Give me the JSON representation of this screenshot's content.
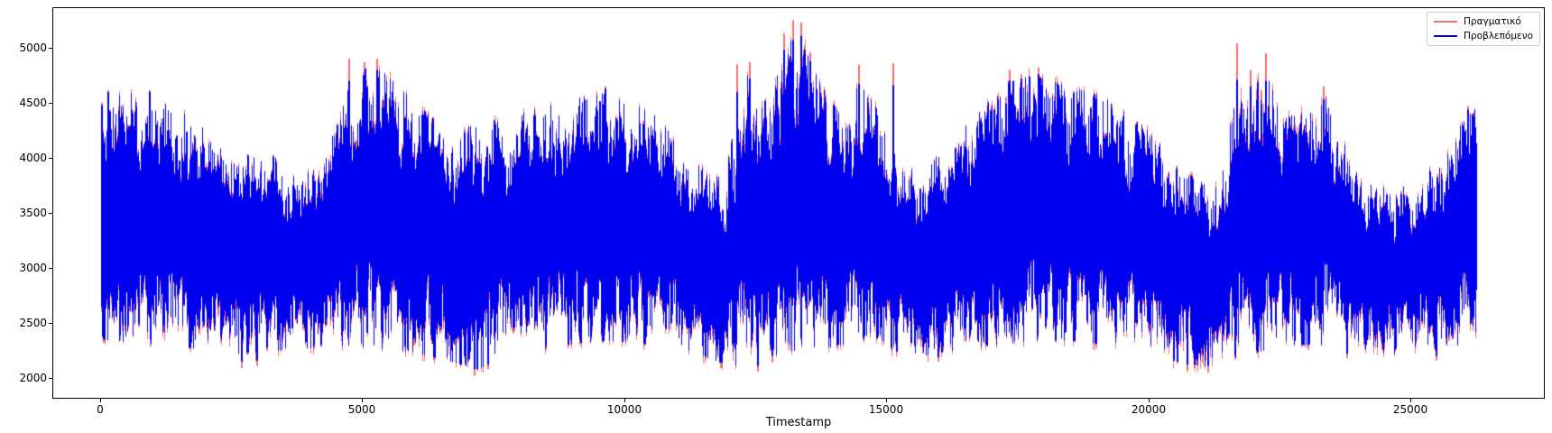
{
  "chart_data": {
    "type": "line",
    "title": "",
    "xlabel": "Timestamp",
    "ylabel": "",
    "grid": false,
    "legend_position": "upper right",
    "xlim": [
      -913,
      27567
    ],
    "ylim": [
      1812,
      5369
    ],
    "x_tick_values": [
      0,
      5000,
      10000,
      15000,
      20000,
      25000
    ],
    "x_tick_labels": [
      "0",
      "5000",
      "10000",
      "15000",
      "20000",
      "25000"
    ],
    "y_tick_values": [
      2000,
      2500,
      3000,
      3500,
      4000,
      4500,
      5000
    ],
    "y_tick_labels": [
      "2000",
      "2500",
      "3000",
      "3500",
      "4000",
      "4500",
      "5000"
    ],
    "x_data_range": [
      0,
      26292
    ],
    "series": [
      {
        "name": "actual",
        "label": "Πραγματικό",
        "color": "#f96d6f"
      },
      {
        "name": "predicted",
        "label": "Προβλεπόμενο",
        "color": "#0000f0"
      }
    ],
    "envelope_columns": [
      "timestamp",
      "upper_blue",
      "lower_blue",
      "red_extra_above",
      "red_extra_below"
    ],
    "envelope": [
      [
        0,
        4550,
        2350,
        40,
        60
      ],
      [
        800,
        4600,
        2320,
        40,
        60
      ],
      [
        1600,
        4400,
        2280,
        40,
        70
      ],
      [
        2600,
        4150,
        2220,
        40,
        80
      ],
      [
        3600,
        3950,
        2260,
        40,
        60
      ],
      [
        4300,
        4100,
        2280,
        50,
        60
      ],
      [
        4800,
        4800,
        2300,
        80,
        60
      ],
      [
        5300,
        4820,
        2260,
        80,
        60
      ],
      [
        5900,
        4550,
        2240,
        50,
        60
      ],
      [
        6600,
        4250,
        2160,
        40,
        70
      ],
      [
        7200,
        4300,
        2080,
        40,
        60
      ],
      [
        8000,
        4400,
        2220,
        40,
        60
      ],
      [
        8900,
        4520,
        2300,
        40,
        50
      ],
      [
        9700,
        4600,
        2340,
        40,
        50
      ],
      [
        10600,
        4380,
        2300,
        40,
        50
      ],
      [
        11300,
        3980,
        2240,
        40,
        60
      ],
      [
        11900,
        3850,
        2130,
        50,
        70
      ],
      [
        12350,
        4750,
        2100,
        90,
        70
      ],
      [
        12800,
        4600,
        2200,
        60,
        60
      ],
      [
        13250,
        5150,
        2250,
        110,
        60
      ],
      [
        13600,
        4850,
        2250,
        70,
        60
      ],
      [
        14100,
        4400,
        2300,
        50,
        50
      ],
      [
        14550,
        4780,
        2300,
        70,
        50
      ],
      [
        15100,
        4100,
        2250,
        50,
        60
      ],
      [
        15700,
        3900,
        2200,
        40,
        60
      ],
      [
        16300,
        4150,
        2250,
        40,
        60
      ],
      [
        17100,
        4650,
        2300,
        60,
        50
      ],
      [
        17800,
        4750,
        2340,
        60,
        50
      ],
      [
        18500,
        4650,
        2340,
        50,
        50
      ],
      [
        19200,
        4550,
        2300,
        40,
        50
      ],
      [
        20000,
        4250,
        2220,
        40,
        60
      ],
      [
        20700,
        3880,
        2130,
        40,
        80
      ],
      [
        21200,
        3720,
        2100,
        40,
        80
      ],
      [
        21800,
        4700,
        2200,
        120,
        70
      ],
      [
        22300,
        4700,
        2260,
        100,
        60
      ],
      [
        22900,
        4400,
        2300,
        60,
        50
      ],
      [
        23400,
        4550,
        2300,
        70,
        50
      ],
      [
        24000,
        3880,
        2250,
        40,
        60
      ],
      [
        24700,
        3680,
        2200,
        40,
        70
      ],
      [
        25400,
        3900,
        2250,
        40,
        60
      ],
      [
        25900,
        4250,
        2300,
        40,
        60
      ],
      [
        26292,
        4470,
        2350,
        40,
        50
      ]
    ],
    "high_spikes_columns": [
      "timestamp",
      "peak_value",
      "red_cap_above_blue"
    ],
    "high_spikes": [
      [
        30,
        4500,
        20
      ],
      [
        150,
        4615,
        15
      ],
      [
        950,
        4615,
        15
      ],
      [
        4750,
        4900,
        200
      ],
      [
        5050,
        4870,
        120
      ],
      [
        5280,
        4900,
        100
      ],
      [
        9650,
        4650,
        20
      ],
      [
        12150,
        4850,
        250
      ],
      [
        12400,
        4870,
        150
      ],
      [
        13050,
        5130,
        150
      ],
      [
        13220,
        5250,
        180
      ],
      [
        13380,
        5230,
        120
      ],
      [
        13550,
        4960,
        80
      ],
      [
        14480,
        4850,
        180
      ],
      [
        15130,
        4860,
        200
      ],
      [
        17350,
        4800,
        100
      ],
      [
        17900,
        4820,
        60
      ],
      [
        21700,
        5040,
        330
      ],
      [
        21950,
        4800,
        150
      ],
      [
        22250,
        4950,
        250
      ],
      [
        23350,
        4650,
        120
      ],
      [
        26100,
        4470,
        30
      ]
    ],
    "low_spikes_columns": [
      "timestamp",
      "trough_value",
      "red_cap_below_blue"
    ],
    "low_spikes": [
      [
        60,
        2320,
        30
      ],
      [
        2700,
        2090,
        60
      ],
      [
        3000,
        2110,
        50
      ],
      [
        7150,
        2020,
        60
      ],
      [
        7400,
        2080,
        40
      ],
      [
        11850,
        2090,
        50
      ],
      [
        12550,
        2060,
        50
      ],
      [
        16000,
        2150,
        40
      ],
      [
        20750,
        2060,
        60
      ],
      [
        21150,
        2050,
        60
      ],
      [
        23800,
        2180,
        40
      ],
      [
        25500,
        2160,
        40
      ]
    ]
  }
}
